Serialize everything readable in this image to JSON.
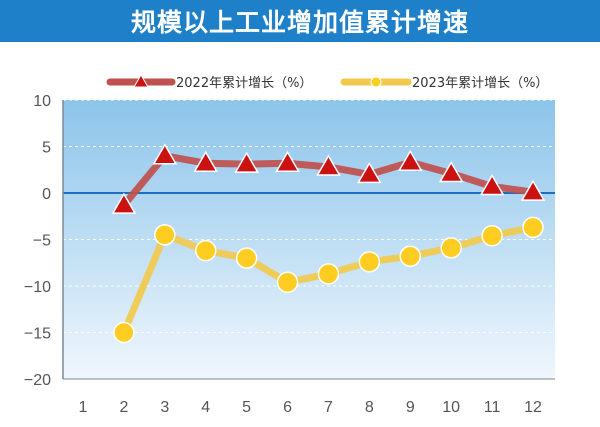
{
  "chart_data": {
    "type": "line",
    "title": "规模以上工业增加值累计增速",
    "categories": [
      "1",
      "2",
      "3",
      "4",
      "5",
      "6",
      "7",
      "8",
      "9",
      "10",
      "11",
      "12"
    ],
    "series": [
      {
        "name": "2022年累计增长（%）",
        "color": "#c0504d",
        "marker": "triangle",
        "values": [
          null,
          -1.3,
          4.0,
          3.2,
          3.1,
          3.2,
          2.8,
          2.0,
          3.3,
          2.1,
          0.7,
          0.1
        ]
      },
      {
        "name": "2023年累计增长（%）",
        "color": "#f2c94c",
        "marker": "circle",
        "values": [
          null,
          -15.0,
          -4.5,
          -6.2,
          -7.0,
          -9.6,
          -8.7,
          -7.4,
          -6.8,
          -5.9,
          -4.6,
          -3.7
        ]
      }
    ],
    "ylim": [
      -20,
      10
    ],
    "yticks": [
      10,
      5,
      0,
      -5,
      -10,
      -15,
      -20
    ],
    "legend_position": "top",
    "grid": true
  }
}
